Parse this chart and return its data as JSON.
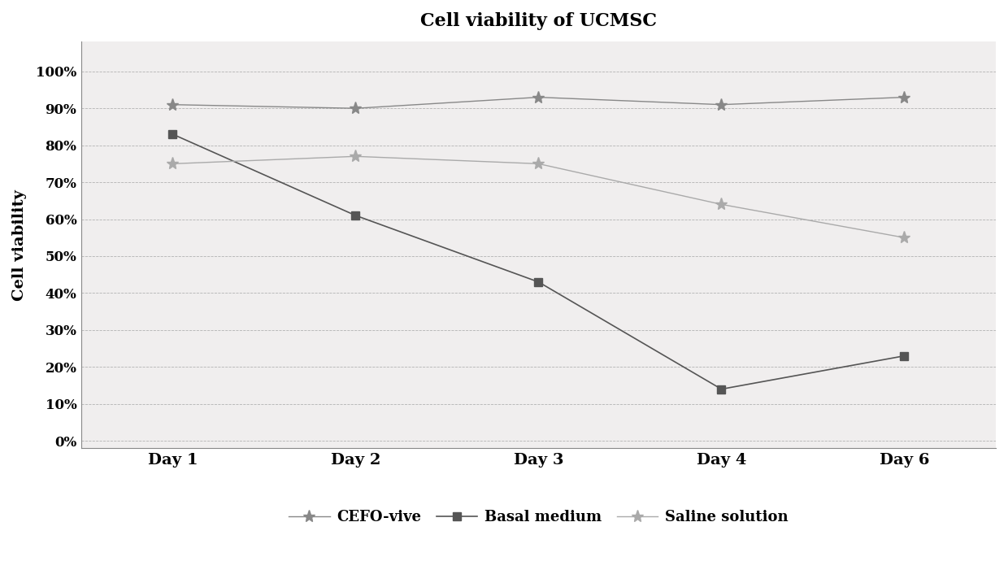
{
  "title": "Cell viability of UCMSC",
  "ylabel": "Cell viability",
  "x_labels": [
    "Day 1",
    "Day 2",
    "Day 3",
    "Day 4",
    "Day 6"
  ],
  "x_values": [
    1,
    2,
    3,
    4,
    5
  ],
  "series": [
    {
      "name": "CEFO-vive",
      "values": [
        0.91,
        0.9,
        0.93,
        0.91,
        0.93
      ],
      "color": "#888888",
      "marker": "*",
      "linewidth": 1.0,
      "markersize": 11
    },
    {
      "name": "Basal medium",
      "values": [
        0.83,
        0.61,
        0.43,
        0.14,
        0.23
      ],
      "color": "#555555",
      "marker": "s",
      "linewidth": 1.2,
      "markersize": 7
    },
    {
      "name": "Saline solution",
      "values": [
        0.75,
        0.77,
        0.75,
        0.64,
        0.55
      ],
      "color": "#aaaaaa",
      "marker": "*",
      "linewidth": 1.0,
      "markersize": 11
    }
  ],
  "ylim": [
    -0.02,
    1.08
  ],
  "ytick_values": [
    0.0,
    0.1,
    0.2,
    0.3,
    0.4,
    0.5,
    0.6,
    0.7,
    0.8,
    0.9,
    1.0
  ],
  "ytick_labels": [
    "0%",
    "10%",
    "20%",
    "30%",
    "40%",
    "50%",
    "60%",
    "70%",
    "80%",
    "90%",
    "100%"
  ],
  "background_color": "#ffffff",
  "plot_bg_color": "#f0eeee",
  "grid_color": "#999999",
  "title_fontsize": 15,
  "label_fontsize": 14,
  "tick_fontsize": 11,
  "legend_fontsize": 13,
  "xlim": [
    0.5,
    5.5
  ]
}
